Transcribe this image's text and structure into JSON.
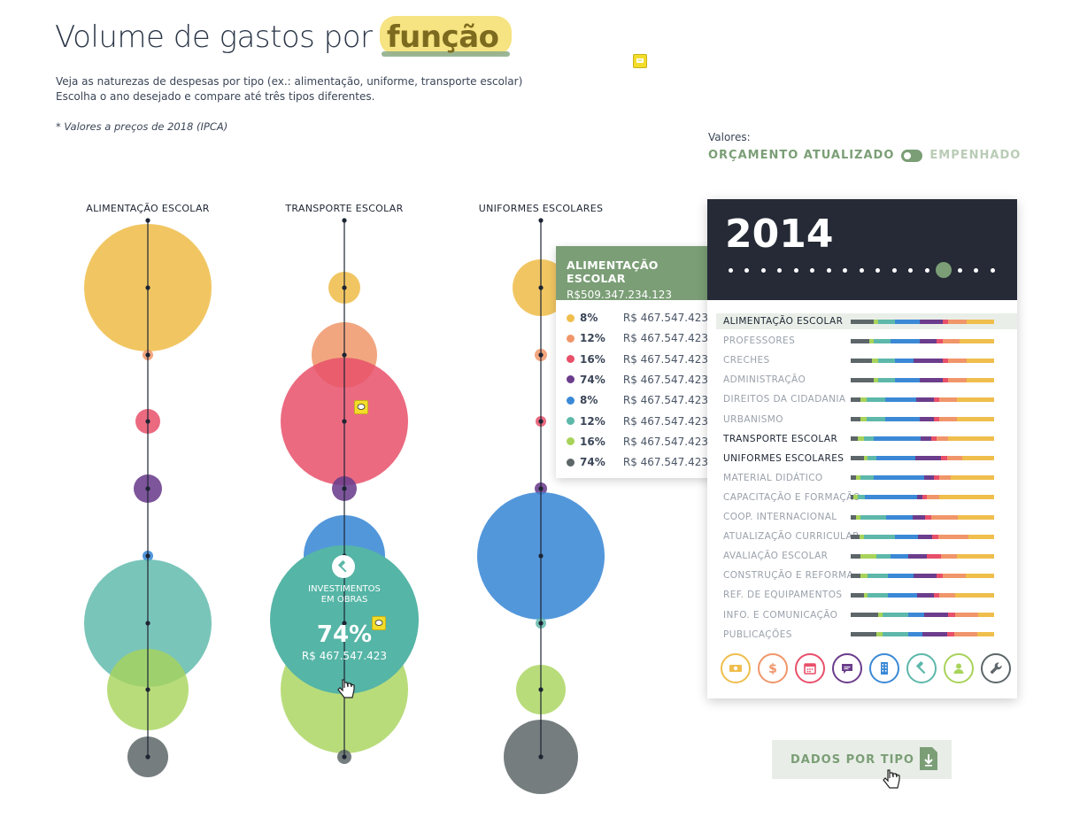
{
  "header": {
    "title_prefix": "Volume de gastos por",
    "title_highlight": "função",
    "subtitle_line1": "Veja as naturezas de despesas por tipo (ex.: alimentação, uniforme, transporte escolar)",
    "subtitle_line2": "Escolha o ano desejado e compare até três tipos diferentes.",
    "note": "* Valores a preços de 2018 (IPCA)"
  },
  "values_toggle": {
    "label": "Valores:",
    "option_on": "ORÇAMENTO ATUALIZADO",
    "option_off": "EMPENHADO"
  },
  "colors": {
    "yellow": "#efbe4c",
    "orange": "#f0966a",
    "red": "#e8506a",
    "purple": "#6b3d8c",
    "blue": "#3b89d6",
    "teal": "#5db8aa",
    "green": "#a8d35a",
    "gray": "#5d6669",
    "accent": "#7b9e76",
    "dark": "#252a36"
  },
  "columns": [
    {
      "title": "ALIMENTAÇÃO ESCOLAR"
    },
    {
      "title": "TRANSPORTE ESCOLAR"
    },
    {
      "title": "UNIFORMES ESCOLARES"
    }
  ],
  "highlight_bubble": {
    "label_line1": "INVESTIMENTOS",
    "label_line2": "EM OBRAS",
    "percent": "74%",
    "amount": "R$ 467.547.423"
  },
  "tooltip": {
    "title": "ALIMENTAÇÃO ESCOLAR",
    "total": "R$509.347.234.123",
    "rows": [
      {
        "color": "#efbe4c",
        "pct": "8%",
        "amount": "R$ 467.547.423"
      },
      {
        "color": "#f0966a",
        "pct": "12%",
        "amount": "R$ 467.547.423"
      },
      {
        "color": "#e8506a",
        "pct": "16%",
        "amount": "R$ 467.547.423"
      },
      {
        "color": "#6b3d8c",
        "pct": "74%",
        "amount": "R$ 467.547.423"
      },
      {
        "color": "#3b89d6",
        "pct": "8%",
        "amount": "R$ 467.547.423"
      },
      {
        "color": "#5db8aa",
        "pct": "12%",
        "amount": "R$ 467.547.423"
      },
      {
        "color": "#a8d35a",
        "pct": "16%",
        "amount": "R$ 467.547.423"
      },
      {
        "color": "#5d6669",
        "pct": "74%",
        "amount": "R$ 467.547.423"
      }
    ]
  },
  "year_panel": {
    "year": "2014",
    "selected_index": 13,
    "functions": [
      {
        "label": "ALIMENTAÇÃO ESCOLAR",
        "selected": true,
        "dark": true
      },
      {
        "label": "PROFESSORES",
        "selected": false,
        "dark": false
      },
      {
        "label": "CRECHES",
        "selected": false,
        "dark": false
      },
      {
        "label": "ADMINISTRAÇÃO",
        "selected": false,
        "dark": false
      },
      {
        "label": "DIREITOS DA CIDADANIA",
        "selected": false,
        "dark": false
      },
      {
        "label": "URBANISMO",
        "selected": false,
        "dark": false
      },
      {
        "label": "TRANSPORTE ESCOLAR",
        "selected": false,
        "dark": true
      },
      {
        "label": "UNIFORMES ESCOLARES",
        "selected": false,
        "dark": true
      },
      {
        "label": "MATERIAL DIDÁTICO",
        "selected": false,
        "dark": false
      },
      {
        "label": "CAPACITAÇÃO E FORMAÇÃO",
        "selected": false,
        "dark": false
      },
      {
        "label": "COOP. INTERNACIONAL",
        "selected": false,
        "dark": false
      },
      {
        "label": "ATUALIZAÇÃO CURRICULAR",
        "selected": false,
        "dark": false
      },
      {
        "label": "AVALIAÇÃO ESCOLAR",
        "selected": false,
        "dark": false
      },
      {
        "label": "CONSTRUÇÃO E REFORMA",
        "selected": false,
        "dark": false
      },
      {
        "label": "REF. DE EQUIPAMENTOS",
        "selected": false,
        "dark": false
      },
      {
        "label": "INFO. E COMUNICAÇÃO",
        "selected": false,
        "dark": false
      },
      {
        "label": "PUBLICAÇÕES",
        "selected": false,
        "dark": false
      }
    ]
  },
  "icons": [
    {
      "name": "money-icon",
      "color": "#efbe4c"
    },
    {
      "name": "dollar-icon",
      "color": "#f0966a"
    },
    {
      "name": "calendar-icon",
      "color": "#e8506a"
    },
    {
      "name": "chat-icon",
      "color": "#6b3d8c"
    },
    {
      "name": "building-icon",
      "color": "#3b89d6"
    },
    {
      "name": "hammer-icon",
      "color": "#5db8aa"
    },
    {
      "name": "user-icon",
      "color": "#a8d35a"
    },
    {
      "name": "wrench-icon",
      "color": "#5d6669"
    }
  ],
  "download_button": {
    "label": "DADOS POR TIPO"
  }
}
